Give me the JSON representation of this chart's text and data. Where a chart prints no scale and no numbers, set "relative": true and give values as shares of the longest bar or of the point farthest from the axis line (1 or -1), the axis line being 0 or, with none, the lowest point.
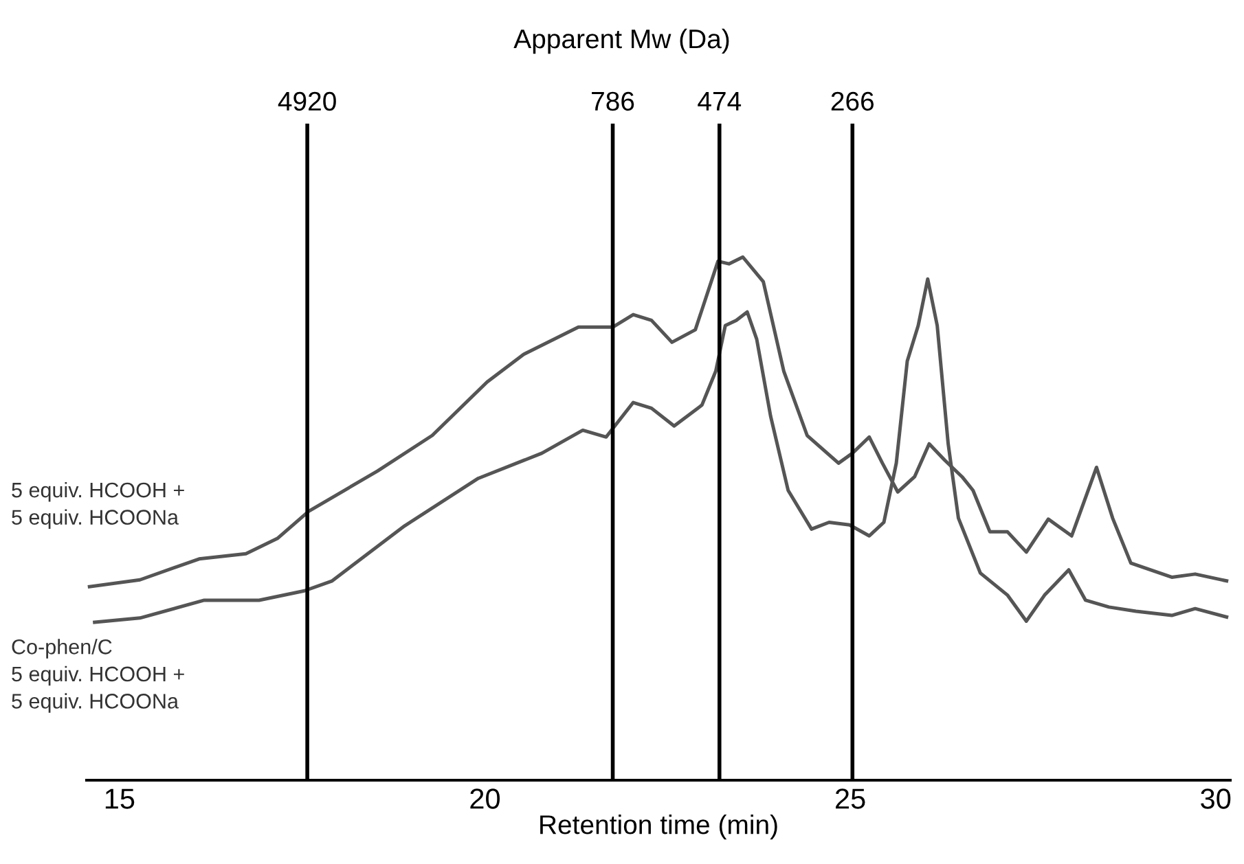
{
  "chart_data": {
    "type": "line",
    "relative": true,
    "xlabel": "Retention time (min)",
    "x2label": "Apparent Mw (Da)",
    "xlim": [
      14.55,
      30.2
    ],
    "xticks": [
      15,
      20,
      25,
      30
    ],
    "annotations": [
      "4920",
      "786",
      "474",
      "266"
    ],
    "tick_labels": "x",
    "grid": false,
    "legend": false,
    "ref_lines": [
      {
        "axis": "x",
        "value": 17.57,
        "color": "#000000"
      },
      {
        "axis": "x",
        "value": 21.75,
        "color": "#000000"
      },
      {
        "axis": "x",
        "value": 23.21,
        "color": "#000000"
      },
      {
        "axis": "x",
        "value": 25.03,
        "color": "#000000"
      }
    ],
    "series": [
      {
        "name": "5 equiv. HCOOH +\n5 equiv. HCOONa",
        "color": "#555555",
        "x": [
          14.59,
          15.28,
          16.09,
          16.73,
          17.16,
          17.59,
          18.53,
          19.28,
          20.03,
          20.53,
          21.28,
          21.75,
          22.03,
          22.28,
          22.56,
          22.88,
          23.19,
          23.34,
          23.53,
          23.81,
          24.09,
          24.41,
          24.84,
          25.03,
          25.26,
          25.44,
          25.65,
          25.88,
          26.08,
          26.29,
          26.53,
          26.68,
          26.91,
          27.15,
          27.41,
          27.71,
          28.03,
          28.37,
          28.59,
          28.84,
          29.4,
          29.72,
          30.15
        ],
        "values": [
          0.37,
          0.383,
          0.423,
          0.433,
          0.462,
          0.514,
          0.591,
          0.659,
          0.761,
          0.814,
          0.866,
          0.866,
          0.89,
          0.879,
          0.837,
          0.861,
          0.992,
          0.987,
          1.0,
          0.953,
          0.782,
          0.659,
          0.606,
          0.625,
          0.656,
          0.606,
          0.551,
          0.58,
          0.643,
          0.612,
          0.58,
          0.554,
          0.475,
          0.475,
          0.436,
          0.499,
          0.467,
          0.598,
          0.501,
          0.415,
          0.388,
          0.394,
          0.381
        ]
      },
      {
        "name": "Co-phen/C\n5 equiv. HCOOH +\n5 equiv. HCOONa",
        "color": "#555555",
        "x": [
          14.66,
          15.28,
          16.16,
          16.91,
          17.53,
          17.91,
          18.9,
          19.91,
          20.78,
          21.34,
          21.66,
          22.03,
          22.28,
          22.59,
          22.97,
          23.16,
          23.29,
          23.44,
          23.59,
          23.72,
          23.91,
          24.15,
          24.47,
          24.71,
          24.99,
          25.26,
          25.46,
          25.63,
          25.78,
          25.93,
          26.06,
          26.19,
          26.34,
          26.48,
          26.78,
          27.15,
          27.41,
          27.66,
          27.99,
          28.22,
          28.54,
          28.91,
          29.4,
          29.72,
          30.15
        ],
        "values": [
          0.302,
          0.31,
          0.344,
          0.344,
          0.362,
          0.381,
          0.486,
          0.577,
          0.625,
          0.669,
          0.656,
          0.722,
          0.711,
          0.677,
          0.717,
          0.782,
          0.869,
          0.879,
          0.895,
          0.843,
          0.696,
          0.554,
          0.48,
          0.493,
          0.488,
          0.467,
          0.493,
          0.606,
          0.801,
          0.869,
          0.958,
          0.869,
          0.643,
          0.501,
          0.396,
          0.354,
          0.304,
          0.354,
          0.402,
          0.344,
          0.331,
          0.323,
          0.315,
          0.328,
          0.312
        ]
      }
    ]
  }
}
